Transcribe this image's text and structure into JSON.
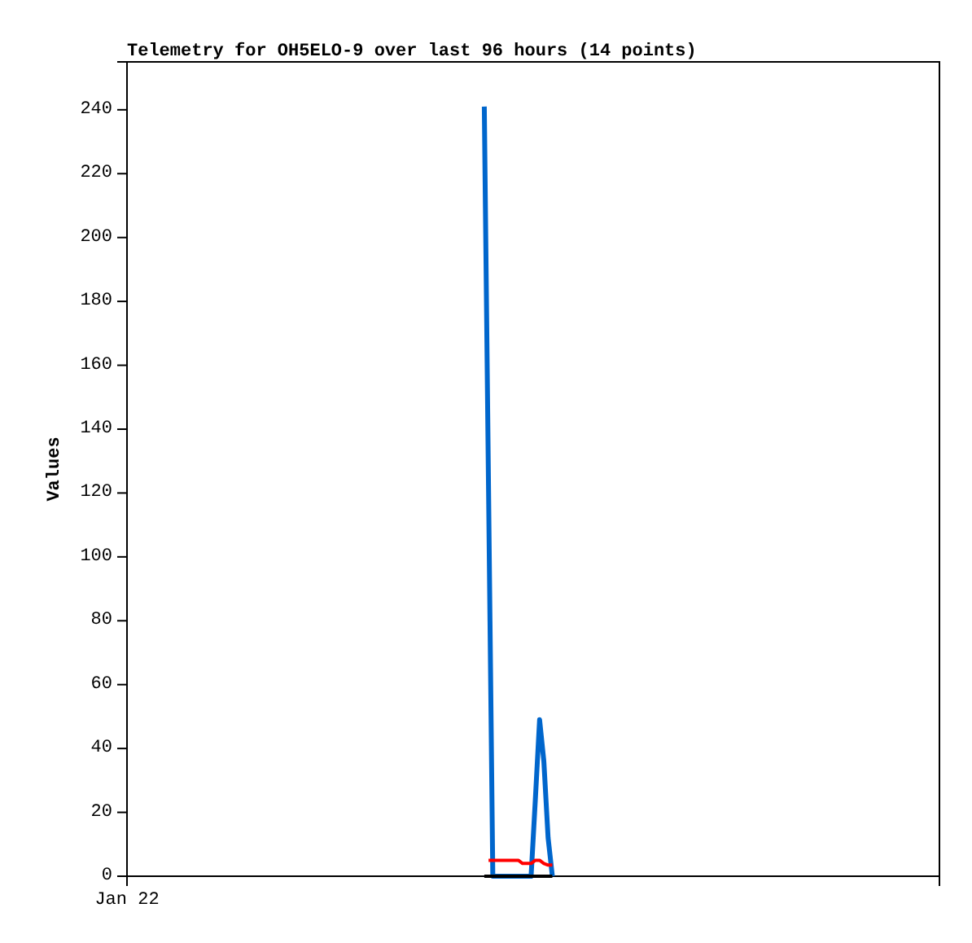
{
  "chart_data": {
    "type": "line",
    "title": "Telemetry for OH5ELO-9 over last 96 hours (14 points)",
    "ylabel": "Values",
    "categories": [
      "Jan 22",
      null,
      null,
      null,
      null,
      null,
      null,
      null,
      null,
      null,
      null,
      null,
      null,
      null,
      null,
      null,
      null,
      null,
      null,
      null,
      null,
      null,
      null,
      null,
      null,
      null,
      null,
      null,
      null,
      null,
      null,
      null,
      null,
      null,
      null,
      null,
      null,
      null,
      null,
      null,
      null,
      null,
      null,
      null,
      null,
      null,
      null,
      null,
      null,
      null,
      null,
      null,
      null,
      null,
      null,
      null,
      null,
      null,
      null,
      null,
      null,
      null,
      null,
      null,
      null,
      null,
      null,
      null,
      null,
      null,
      null,
      null,
      null,
      null,
      null,
      null,
      null,
      null,
      null,
      null,
      null,
      null,
      null,
      null,
      null,
      null,
      null,
      null,
      null,
      null,
      null,
      null,
      null,
      null,
      null,
      null,
      null,
      null,
      null,
      null,
      null,
      null,
      null,
      null,
      null,
      null,
      null,
      null,
      null,
      null,
      null,
      null,
      null,
      null,
      null,
      null,
      null,
      null,
      null,
      null,
      null,
      null,
      null,
      null,
      null,
      null,
      null,
      null,
      null,
      null,
      null,
      null,
      null,
      null,
      null,
      null,
      null,
      null,
      null,
      null,
      null,
      null,
      null,
      null,
      null,
      null,
      null,
      null,
      null,
      null,
      null,
      null,
      null,
      null,
      null,
      null,
      null,
      null,
      null,
      null,
      null,
      null,
      null,
      null,
      null,
      null,
      null,
      null,
      null,
      null,
      null,
      null,
      null,
      null,
      null,
      null,
      null,
      null,
      null,
      null,
      null,
      null,
      null,
      null,
      null,
      null,
      null,
      null,
      null,
      null,
      null,
      null
    ],
    "ylim": [
      0,
      255
    ],
    "yticks": [
      0,
      20,
      40,
      60,
      80,
      100,
      120,
      140,
      160,
      180,
      200,
      220,
      240
    ],
    "grid": false,
    "marker": "none",
    "line_style": "solid",
    "series": [
      {
        "color": "#0066cc",
        "values": [
          null,
          null,
          null,
          null,
          null,
          null,
          null,
          null,
          null,
          null,
          null,
          null,
          null,
          null,
          null,
          null,
          null,
          null,
          null,
          null,
          null,
          null,
          null,
          null,
          null,
          null,
          null,
          null,
          null,
          null,
          null,
          null,
          null,
          null,
          null,
          null,
          null,
          null,
          null,
          null,
          null,
          null,
          null,
          null,
          null,
          null,
          null,
          null,
          null,
          null,
          null,
          null,
          null,
          null,
          null,
          null,
          null,
          null,
          null,
          null,
          null,
          null,
          null,
          null,
          null,
          null,
          null,
          null,
          null,
          null,
          null,
          null,
          null,
          null,
          null,
          null,
          null,
          null,
          null,
          null,
          null,
          null,
          null,
          null,
          241,
          121,
          0,
          0,
          0,
          0,
          0,
          0,
          0,
          0,
          0,
          0,
          24,
          49,
          36,
          12,
          0,
          null,
          null,
          null,
          null,
          null,
          null,
          null,
          null,
          null,
          null,
          null,
          null,
          null,
          null,
          null,
          null,
          null,
          null,
          null,
          null,
          null,
          null,
          null,
          null,
          null,
          null,
          null,
          null,
          null,
          null,
          null,
          null,
          null,
          null,
          null,
          null,
          null,
          null,
          null,
          null,
          null,
          null,
          null,
          null,
          null,
          null,
          null,
          null,
          null,
          null,
          null,
          null,
          null,
          null,
          null,
          null,
          null,
          null,
          null,
          null,
          null,
          null,
          null,
          null,
          null,
          null,
          null,
          null,
          null,
          null,
          null,
          null,
          null,
          null,
          null,
          null,
          null,
          null,
          null,
          null,
          null,
          null,
          null,
          null,
          null,
          null,
          null,
          null,
          null,
          null,
          null
        ]
      },
      {
        "color": "#ff0000",
        "values": [
          null,
          null,
          null,
          null,
          null,
          null,
          null,
          null,
          null,
          null,
          null,
          null,
          null,
          null,
          null,
          null,
          null,
          null,
          null,
          null,
          null,
          null,
          null,
          null,
          null,
          null,
          null,
          null,
          null,
          null,
          null,
          null,
          null,
          null,
          null,
          null,
          null,
          null,
          null,
          null,
          null,
          null,
          null,
          null,
          null,
          null,
          null,
          null,
          null,
          null,
          null,
          null,
          null,
          null,
          null,
          null,
          null,
          null,
          null,
          null,
          null,
          null,
          null,
          null,
          null,
          null,
          null,
          null,
          null,
          null,
          null,
          null,
          null,
          null,
          null,
          null,
          null,
          null,
          null,
          null,
          null,
          null,
          null,
          null,
          null,
          5,
          5,
          5,
          5,
          5,
          5,
          5,
          5,
          4,
          4,
          4,
          5,
          5,
          4,
          3.5,
          3.5,
          null,
          null,
          null,
          null,
          null,
          null,
          null,
          null,
          null,
          null,
          null,
          null,
          null,
          null,
          null,
          null,
          null,
          null,
          null,
          null,
          null,
          null,
          null,
          null,
          null,
          null,
          null,
          null,
          null,
          null,
          null,
          null,
          null,
          null,
          null,
          null,
          null,
          null,
          null,
          null,
          null,
          null,
          null,
          null,
          null,
          null,
          null,
          null,
          null,
          null,
          null,
          null,
          null,
          null,
          null,
          null,
          null,
          null,
          null,
          null,
          null,
          null,
          null,
          null,
          null,
          null,
          null,
          null,
          null,
          null,
          null,
          null,
          null,
          null,
          null,
          null,
          null,
          null,
          null,
          null,
          null,
          null,
          null,
          null,
          null,
          null,
          null,
          null,
          null,
          null,
          null
        ]
      },
      {
        "color": "#000000",
        "values": [
          null,
          null,
          null,
          null,
          null,
          null,
          null,
          null,
          null,
          null,
          null,
          null,
          null,
          null,
          null,
          null,
          null,
          null,
          null,
          null,
          null,
          null,
          null,
          null,
          null,
          null,
          null,
          null,
          null,
          null,
          null,
          null,
          null,
          null,
          null,
          null,
          null,
          null,
          null,
          null,
          null,
          null,
          null,
          null,
          null,
          null,
          null,
          null,
          null,
          null,
          null,
          null,
          null,
          null,
          null,
          null,
          null,
          null,
          null,
          null,
          null,
          null,
          null,
          null,
          null,
          null,
          null,
          null,
          null,
          null,
          null,
          null,
          null,
          null,
          null,
          null,
          null,
          null,
          null,
          null,
          null,
          null,
          null,
          null,
          0,
          0,
          0,
          0,
          0,
          0,
          0,
          0,
          0,
          0,
          0,
          0,
          0,
          0,
          0,
          0,
          0,
          null,
          null,
          null,
          null,
          null,
          null,
          null,
          null,
          null,
          null,
          null,
          null,
          null,
          null,
          null,
          null,
          null,
          null,
          null,
          null,
          null,
          null,
          null,
          null,
          null,
          null,
          null,
          null,
          null,
          null,
          null,
          null,
          null,
          null,
          null,
          null,
          null,
          null,
          null,
          null,
          null,
          null,
          null,
          null,
          null,
          null,
          null,
          null,
          null,
          null,
          null,
          null,
          null,
          null,
          null,
          null,
          null,
          null,
          null,
          null,
          null,
          null,
          null,
          null,
          null,
          null,
          null,
          null,
          null,
          null,
          null,
          null,
          null,
          null,
          null,
          null,
          null,
          null,
          null,
          null,
          null,
          null,
          null,
          null,
          null,
          null,
          null,
          null,
          null,
          null,
          null
        ]
      }
    ]
  }
}
